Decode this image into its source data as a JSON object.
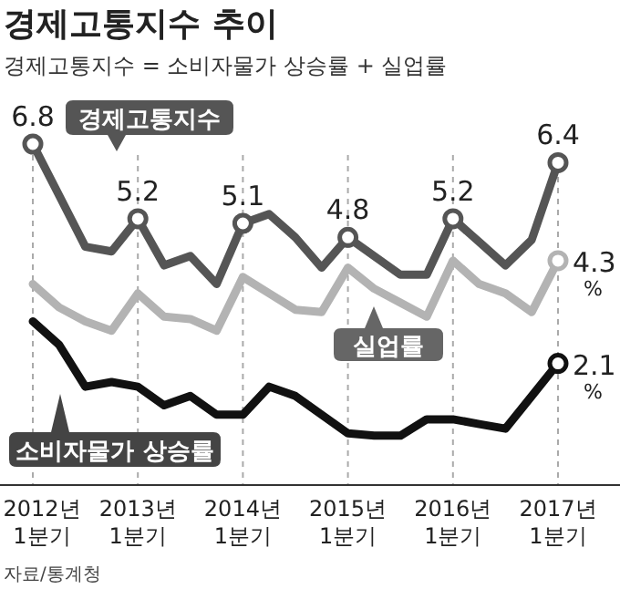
{
  "chart_data": {
    "type": "line",
    "title": "경제고통지수 추이",
    "subtitle": "경제고통지수 = 소비자물가 상승률 + 실업률",
    "categories": [
      "2012년 1분기",
      null,
      null,
      null,
      "2013년 1분기",
      null,
      null,
      null,
      "2014년 1분기",
      null,
      null,
      null,
      "2015년 1분기",
      null,
      null,
      null,
      "2016년 1분기",
      null,
      null,
      null,
      "2017년 1분기"
    ],
    "series": [
      {
        "name": "경제고통지수",
        "color": "#555555",
        "values": [
          6.8,
          5.7,
          4.6,
          4.5,
          5.2,
          4.2,
          4.4,
          3.8,
          5.1,
          5.3,
          4.8,
          4.15,
          4.8,
          4.4,
          4.0,
          4.0,
          5.2,
          4.7,
          4.2,
          4.75,
          6.4
        ],
        "value_labels": [
          "6.8",
          null,
          null,
          null,
          "5.2",
          null,
          null,
          null,
          "5.1",
          null,
          null,
          null,
          "4.8",
          null,
          null,
          null,
          "5.2",
          null,
          null,
          null,
          "6.4"
        ]
      },
      {
        "name": "실업률",
        "color": "#b3b3b3",
        "values": [
          3.8,
          3.3,
          3.0,
          2.8,
          3.6,
          3.1,
          3.05,
          2.8,
          3.95,
          3.6,
          3.25,
          3.2,
          4.15,
          3.7,
          3.4,
          3.1,
          4.3,
          3.8,
          3.6,
          3.2,
          4.3
        ],
        "value_labels": [
          null,
          null,
          null,
          null,
          null,
          null,
          null,
          null,
          null,
          null,
          null,
          null,
          null,
          null,
          null,
          null,
          null,
          null,
          null,
          null,
          "4.3$_{%}$"
        ]
      },
      {
        "name": "소비자물가 상승률",
        "color": "#111111",
        "values": [
          3.0,
          2.5,
          1.6,
          1.7,
          1.6,
          1.2,
          1.4,
          1.0,
          1.0,
          1.6,
          1.4,
          1.0,
          0.6,
          0.55,
          0.55,
          0.9,
          0.9,
          0.8,
          0.7,
          1.4,
          2.1
        ],
        "value_labels": [
          null,
          null,
          null,
          null,
          null,
          null,
          null,
          null,
          null,
          null,
          null,
          null,
          null,
          null,
          null,
          null,
          null,
          null,
          null,
          null,
          "2.1$_{%}$"
        ]
      }
    ],
    "grid": "x",
    "line_style": "solid",
    "annotations": [
      "자료/통계청"
    ]
  }
}
